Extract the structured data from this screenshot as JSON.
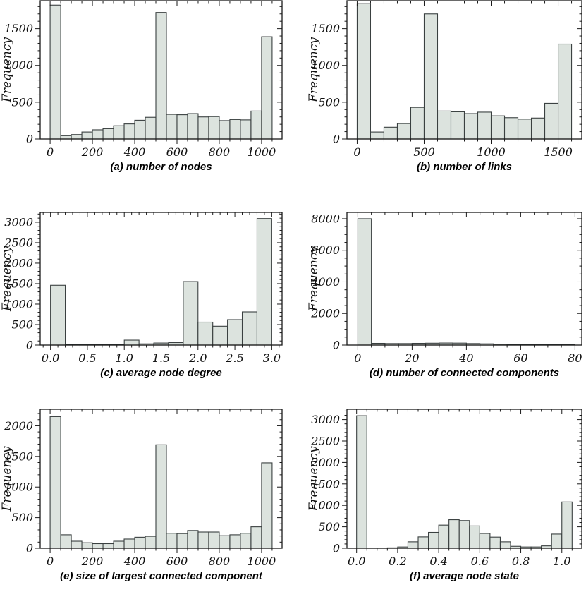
{
  "colors": {
    "bar_fill": "#dce3de",
    "bar_stroke": "#3a4040",
    "frame": "#1a1a1a",
    "text": "#111111"
  },
  "chart_data": [
    {
      "type": "bar",
      "caption": "(a) number of nodes",
      "ylabel": "Frequency",
      "bin_start": 0,
      "bin_width": 50,
      "values": [
        1820,
        45,
        60,
        95,
        125,
        140,
        180,
        205,
        255,
        295,
        1720,
        335,
        330,
        345,
        300,
        305,
        250,
        265,
        260,
        380,
        1390
      ],
      "xlim": [
        -47,
        1097
      ],
      "ylim": [
        0,
        1880
      ],
      "x_ticks": [
        {
          "v": 0,
          "label": "0"
        },
        {
          "v": 200,
          "label": "200"
        },
        {
          "v": 400,
          "label": "400"
        },
        {
          "v": 600,
          "label": "600"
        },
        {
          "v": 800,
          "label": "800"
        },
        {
          "v": 1000,
          "label": "1000"
        }
      ],
      "x_minor_step": 50,
      "y_ticks": [
        {
          "v": 0,
          "label": "0"
        },
        {
          "v": 500,
          "label": "500"
        },
        {
          "v": 1000,
          "label": "1000"
        },
        {
          "v": 1500,
          "label": "1500"
        }
      ],
      "y_minor_step": 100,
      "grid": false,
      "legend": null
    },
    {
      "type": "bar",
      "caption": "(b) number of links",
      "ylabel": "Frequency",
      "bin_start": 0,
      "bin_width": 100,
      "values": [
        1840,
        95,
        160,
        210,
        430,
        1700,
        380,
        370,
        345,
        365,
        315,
        290,
        270,
        285,
        485,
        1290
      ],
      "xlim": [
        -76,
        1676
      ],
      "ylim": [
        0,
        1880
      ],
      "x_ticks": [
        {
          "v": 0,
          "label": "0"
        },
        {
          "v": 500,
          "label": "500"
        },
        {
          "v": 1000,
          "label": "1000"
        },
        {
          "v": 1500,
          "label": "1500"
        }
      ],
      "x_minor_step": 100,
      "y_ticks": [
        {
          "v": 0,
          "label": "0"
        },
        {
          "v": 500,
          "label": "500"
        },
        {
          "v": 1000,
          "label": "1000"
        },
        {
          "v": 1500,
          "label": "1500"
        }
      ],
      "y_minor_step": 100,
      "grid": false,
      "legend": null
    },
    {
      "type": "bar",
      "caption": "(c) average node degree",
      "ylabel": "Frequency",
      "bin_start": 0,
      "bin_width": 0.2,
      "values": [
        1460,
        15,
        15,
        10,
        10,
        120,
        30,
        50,
        60,
        1550,
        560,
        460,
        620,
        810,
        3090
      ],
      "xlim": [
        -0.14,
        3.14
      ],
      "ylim": [
        0,
        3240
      ],
      "x_ticks": [
        {
          "v": 0,
          "label": "0.0"
        },
        {
          "v": 0.5,
          "label": "0.5"
        },
        {
          "v": 1,
          "label": "1.0"
        },
        {
          "v": 1.5,
          "label": "1.5"
        },
        {
          "v": 2,
          "label": "2.0"
        },
        {
          "v": 2.5,
          "label": "2.5"
        },
        {
          "v": 3,
          "label": "3.0"
        }
      ],
      "x_minor_step": 0.1,
      "y_ticks": [
        {
          "v": 0,
          "label": "0"
        },
        {
          "v": 500,
          "label": "500"
        },
        {
          "v": 1000,
          "label": "1000"
        },
        {
          "v": 1500,
          "label": "1500"
        },
        {
          "v": 2000,
          "label": "2000"
        },
        {
          "v": 2500,
          "label": "2500"
        },
        {
          "v": 3000,
          "label": "3000"
        }
      ],
      "y_minor_step": 100,
      "grid": false,
      "legend": null
    },
    {
      "type": "bar",
      "caption": "(d) number of connected components",
      "ylabel": "Frequency",
      "bin_start": 0,
      "bin_width": 5,
      "values": [
        8000,
        110,
        95,
        95,
        110,
        120,
        130,
        125,
        95,
        80,
        55,
        45,
        35,
        30,
        30,
        25
      ],
      "xlim": [
        -4,
        82.5
      ],
      "ylim": [
        0,
        8400
      ],
      "x_ticks": [
        {
          "v": 0,
          "label": "0"
        },
        {
          "v": 20,
          "label": "20"
        },
        {
          "v": 40,
          "label": "40"
        },
        {
          "v": 60,
          "label": "60"
        },
        {
          "v": 80,
          "label": "80"
        }
      ],
      "x_minor_step": 5,
      "y_ticks": [
        {
          "v": 0,
          "label": "0"
        },
        {
          "v": 2000,
          "label": "2000"
        },
        {
          "v": 4000,
          "label": "4000"
        },
        {
          "v": 6000,
          "label": "6000"
        },
        {
          "v": 8000,
          "label": "8000"
        }
      ],
      "y_minor_step": 500,
      "grid": false,
      "legend": null
    },
    {
      "type": "bar",
      "caption": "(e) size of largest connected component",
      "ylabel": "Frequency",
      "bin_start": 0,
      "bin_width": 50,
      "values": [
        2150,
        220,
        115,
        90,
        75,
        75,
        115,
        150,
        180,
        195,
        1690,
        245,
        240,
        290,
        265,
        265,
        205,
        220,
        245,
        350,
        1395
      ],
      "xlim": [
        -47,
        1097
      ],
      "ylim": [
        0,
        2270
      ],
      "x_ticks": [
        {
          "v": 0,
          "label": "0"
        },
        {
          "v": 200,
          "label": "200"
        },
        {
          "v": 400,
          "label": "400"
        },
        {
          "v": 600,
          "label": "600"
        },
        {
          "v": 800,
          "label": "800"
        },
        {
          "v": 1000,
          "label": "1000"
        }
      ],
      "x_minor_step": 50,
      "y_ticks": [
        {
          "v": 0,
          "label": "0"
        },
        {
          "v": 500,
          "label": "500"
        },
        {
          "v": 1000,
          "label": "1000"
        },
        {
          "v": 1500,
          "label": "1500"
        },
        {
          "v": 2000,
          "label": "2000"
        }
      ],
      "y_minor_step": 100,
      "grid": false,
      "legend": null
    },
    {
      "type": "bar",
      "caption": "(f) average node state",
      "ylabel": "Frequency",
      "bin_start": 0,
      "bin_width": 0.05,
      "values": [
        3090,
        5,
        5,
        10,
        30,
        150,
        265,
        370,
        540,
        665,
        645,
        520,
        345,
        260,
        150,
        45,
        30,
        30,
        55,
        330,
        1080
      ],
      "xlim": [
        -0.047,
        1.097
      ],
      "ylim": [
        0,
        3240
      ],
      "x_ticks": [
        {
          "v": 0,
          "label": "0.0"
        },
        {
          "v": 0.2,
          "label": "0.2"
        },
        {
          "v": 0.4,
          "label": "0.4"
        },
        {
          "v": 0.6,
          "label": "0.6"
        },
        {
          "v": 0.8,
          "label": "0.8"
        },
        {
          "v": 1,
          "label": "1.0"
        }
      ],
      "x_minor_step": 0.05,
      "y_ticks": [
        {
          "v": 0,
          "label": "0"
        },
        {
          "v": 500,
          "label": "500"
        },
        {
          "v": 1000,
          "label": "1000"
        },
        {
          "v": 1500,
          "label": "1500"
        },
        {
          "v": 2000,
          "label": "2000"
        },
        {
          "v": 2500,
          "label": "2500"
        },
        {
          "v": 3000,
          "label": "3000"
        }
      ],
      "y_minor_step": 100,
      "grid": false,
      "legend": null
    }
  ]
}
